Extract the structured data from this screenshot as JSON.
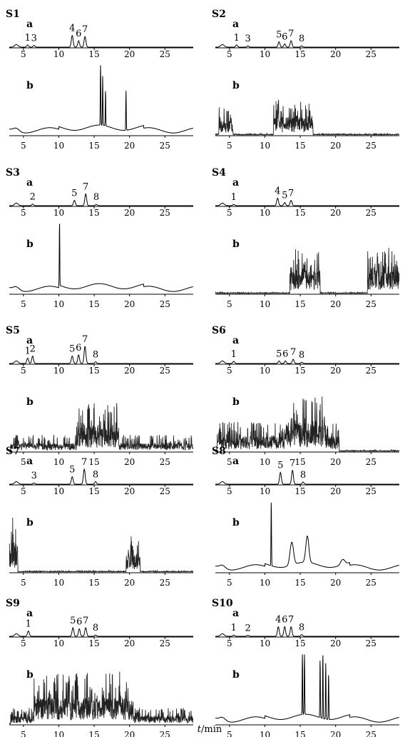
{
  "chart_data": {
    "type": "line",
    "x_axis_label_italic": "t",
    "x_axis_label_unit": "/min",
    "x_ticks": [
      5,
      10,
      15,
      20,
      25
    ],
    "xlim": [
      3,
      29
    ],
    "trace_labels": [
      "a",
      "b"
    ],
    "samples": [
      {
        "name": "S1",
        "a": {
          "peak_labels": [
            "1",
            "3",
            "4",
            "6",
            "7"
          ],
          "peaks": [
            {
              "label": "1",
              "t": 5.6,
              "h": 0.1
            },
            {
              "label": "3",
              "t": 6.5,
              "h": 0.08
            },
            {
              "label": "4",
              "t": 11.9,
              "h": 0.55
            },
            {
              "label": "6",
              "t": 12.8,
              "h": 0.3
            },
            {
              "label": "7",
              "t": 13.7,
              "h": 0.5
            }
          ]
        },
        "b": {
          "style": "smooth",
          "features": [
            {
              "t": 15.9,
              "h": 1.0,
              "w": 0.05
            },
            {
              "t": 16.2,
              "h": 0.75,
              "w": 0.05
            },
            {
              "t": 16.6,
              "h": 0.55,
              "w": 0.05
            },
            {
              "t": 19.5,
              "h": 0.6,
              "w": 0.05
            }
          ]
        }
      },
      {
        "name": "S2",
        "a": {
          "peak_labels": [
            "1",
            "3",
            "5",
            "6",
            "7",
            "8"
          ],
          "peaks": [
            {
              "label": "1",
              "t": 6.0,
              "h": 0.1
            },
            {
              "label": "3",
              "t": 7.6,
              "h": 0.06
            },
            {
              "label": "5",
              "t": 12.0,
              "h": 0.25
            },
            {
              "label": "6",
              "t": 12.8,
              "h": 0.15
            },
            {
              "label": "7",
              "t": 13.7,
              "h": 0.3
            },
            {
              "label": "8",
              "t": 15.2,
              "h": 0.06
            }
          ]
        },
        "b": {
          "style": "noisy",
          "regions": [
            {
              "from": 3.5,
              "to": 5.5,
              "amp": 0.45
            },
            {
              "from": 11.2,
              "to": 16.8,
              "amp": 0.55
            }
          ]
        }
      },
      {
        "name": "S3",
        "a": {
          "peak_labels": [
            "2",
            "5",
            "7",
            "8"
          ],
          "peaks": [
            {
              "label": "2",
              "t": 6.3,
              "h": 0.08
            },
            {
              "label": "5",
              "t": 12.2,
              "h": 0.25
            },
            {
              "label": "7",
              "t": 13.8,
              "h": 0.55
            },
            {
              "label": "8",
              "t": 15.3,
              "h": 0.06
            }
          ]
        },
        "b": {
          "style": "smooth",
          "features": [
            {
              "t": 10.1,
              "h": 1.0,
              "w": 0.05
            }
          ]
        }
      },
      {
        "name": "S4",
        "a": {
          "peak_labels": [
            "1",
            "4",
            "5",
            "7"
          ],
          "peaks": [
            {
              "label": "1",
              "t": 5.6,
              "h": 0.06
            },
            {
              "label": "4",
              "t": 11.8,
              "h": 0.35
            },
            {
              "label": "5",
              "t": 12.8,
              "h": 0.15
            },
            {
              "label": "7",
              "t": 13.7,
              "h": 0.25
            }
          ]
        },
        "b": {
          "style": "noisy",
          "regions": [
            {
              "from": 13.5,
              "to": 17.8,
              "amp": 0.7
            },
            {
              "from": 24.5,
              "to": 29.0,
              "amp": 0.7
            }
          ]
        }
      },
      {
        "name": "S5",
        "a": {
          "peak_labels": [
            "1",
            "2",
            "5",
            "6",
            "7",
            "8"
          ],
          "peaks": [
            {
              "label": "1",
              "t": 5.6,
              "h": 0.25
            },
            {
              "label": "2",
              "t": 6.3,
              "h": 0.35
            },
            {
              "label": "5",
              "t": 11.9,
              "h": 0.35
            },
            {
              "label": "6",
              "t": 12.8,
              "h": 0.4
            },
            {
              "label": "7",
              "t": 13.7,
              "h": 0.8
            },
            {
              "label": "8",
              "t": 15.2,
              "h": 0.08
            }
          ]
        },
        "b": {
          "style": "noisy",
          "regions": [
            {
              "from": 3.2,
              "to": 29.0,
              "amp": 0.25
            },
            {
              "from": 12.5,
              "to": 18.5,
              "amp": 0.75
            }
          ]
        }
      },
      {
        "name": "S6",
        "a": {
          "peak_labels": [
            "1",
            "5",
            "6",
            "7",
            "8"
          ],
          "peaks": [
            {
              "label": "1",
              "t": 5.6,
              "h": 0.1
            },
            {
              "label": "5",
              "t": 12.0,
              "h": 0.12
            },
            {
              "label": "6",
              "t": 12.9,
              "h": 0.12
            },
            {
              "label": "7",
              "t": 14.0,
              "h": 0.2
            },
            {
              "label": "8",
              "t": 15.2,
              "h": 0.06
            }
          ]
        },
        "b": {
          "style": "noisy",
          "regions": [
            {
              "from": 3.2,
              "to": 20.5,
              "amp": 0.45
            },
            {
              "from": 12.8,
              "to": 18.5,
              "amp": 0.85
            }
          ]
        }
      },
      {
        "name": "S7",
        "a": {
          "peak_labels": [
            "3",
            "5",
            "7",
            "8"
          ],
          "peaks": [
            {
              "label": "3",
              "t": 6.5,
              "h": 0.06
            },
            {
              "label": "5",
              "t": 11.9,
              "h": 0.35
            },
            {
              "label": "7",
              "t": 13.6,
              "h": 0.7
            },
            {
              "label": "8",
              "t": 15.2,
              "h": 0.12
            }
          ]
        },
        "b": {
          "style": "noisy",
          "regions": [
            {
              "from": 3.0,
              "to": 4.2,
              "amp": 0.9
            },
            {
              "from": 19.5,
              "to": 21.5,
              "amp": 0.55
            }
          ]
        }
      },
      {
        "name": "S8",
        "a": {
          "peak_labels": [
            "5",
            "7",
            "8"
          ],
          "peaks": [
            {
              "label": "5",
              "t": 12.2,
              "h": 0.55
            },
            {
              "label": "7",
              "t": 13.9,
              "h": 0.65
            },
            {
              "label": "8",
              "t": 15.4,
              "h": 0.1
            }
          ]
        },
        "b": {
          "style": "smooth",
          "features": [
            {
              "t": 10.9,
              "h": 1.0,
              "w": 0.05
            },
            {
              "t": 13.8,
              "h": 0.35,
              "w": 0.35
            },
            {
              "t": 16.0,
              "h": 0.4,
              "w": 0.3
            },
            {
              "t": 21.0,
              "h": 0.08,
              "w": 0.4
            }
          ]
        }
      },
      {
        "name": "S9",
        "a": {
          "peak_labels": [
            "1",
            "5",
            "6",
            "7",
            "8"
          ],
          "peaks": [
            {
              "label": "1",
              "t": 5.7,
              "h": 0.25
            },
            {
              "label": "5",
              "t": 12.0,
              "h": 0.4
            },
            {
              "label": "6",
              "t": 12.9,
              "h": 0.35
            },
            {
              "label": "7",
              "t": 13.8,
              "h": 0.4
            },
            {
              "label": "8",
              "t": 15.2,
              "h": 0.06
            }
          ]
        },
        "b": {
          "style": "noisy",
          "regions": [
            {
              "from": 3.2,
              "to": 29.0,
              "amp": 0.25
            },
            {
              "from": 6.5,
              "to": 20.5,
              "amp": 0.8
            }
          ]
        }
      },
      {
        "name": "S10",
        "a": {
          "peak_labels": [
            "1",
            "2",
            "4",
            "6",
            "7",
            "8"
          ],
          "peaks": [
            {
              "label": "1",
              "t": 5.6,
              "h": 0.06
            },
            {
              "label": "2",
              "t": 7.6,
              "h": 0.05
            },
            {
              "label": "4",
              "t": 11.9,
              "h": 0.45
            },
            {
              "label": "6",
              "t": 12.8,
              "h": 0.45
            },
            {
              "label": "7",
              "t": 13.7,
              "h": 0.45
            },
            {
              "label": "8",
              "t": 15.2,
              "h": 0.08
            }
          ]
        },
        "b": {
          "style": "smooth",
          "features": [
            {
              "t": 15.3,
              "h": 1.0,
              "w": 0.05
            },
            {
              "t": 15.6,
              "h": 1.0,
              "w": 0.05
            },
            {
              "t": 17.8,
              "h": 0.9,
              "w": 0.05
            },
            {
              "t": 18.2,
              "h": 1.0,
              "w": 0.05
            },
            {
              "t": 18.6,
              "h": 0.85,
              "w": 0.05
            },
            {
              "t": 19.0,
              "h": 0.7,
              "w": 0.05
            }
          ]
        }
      }
    ]
  }
}
